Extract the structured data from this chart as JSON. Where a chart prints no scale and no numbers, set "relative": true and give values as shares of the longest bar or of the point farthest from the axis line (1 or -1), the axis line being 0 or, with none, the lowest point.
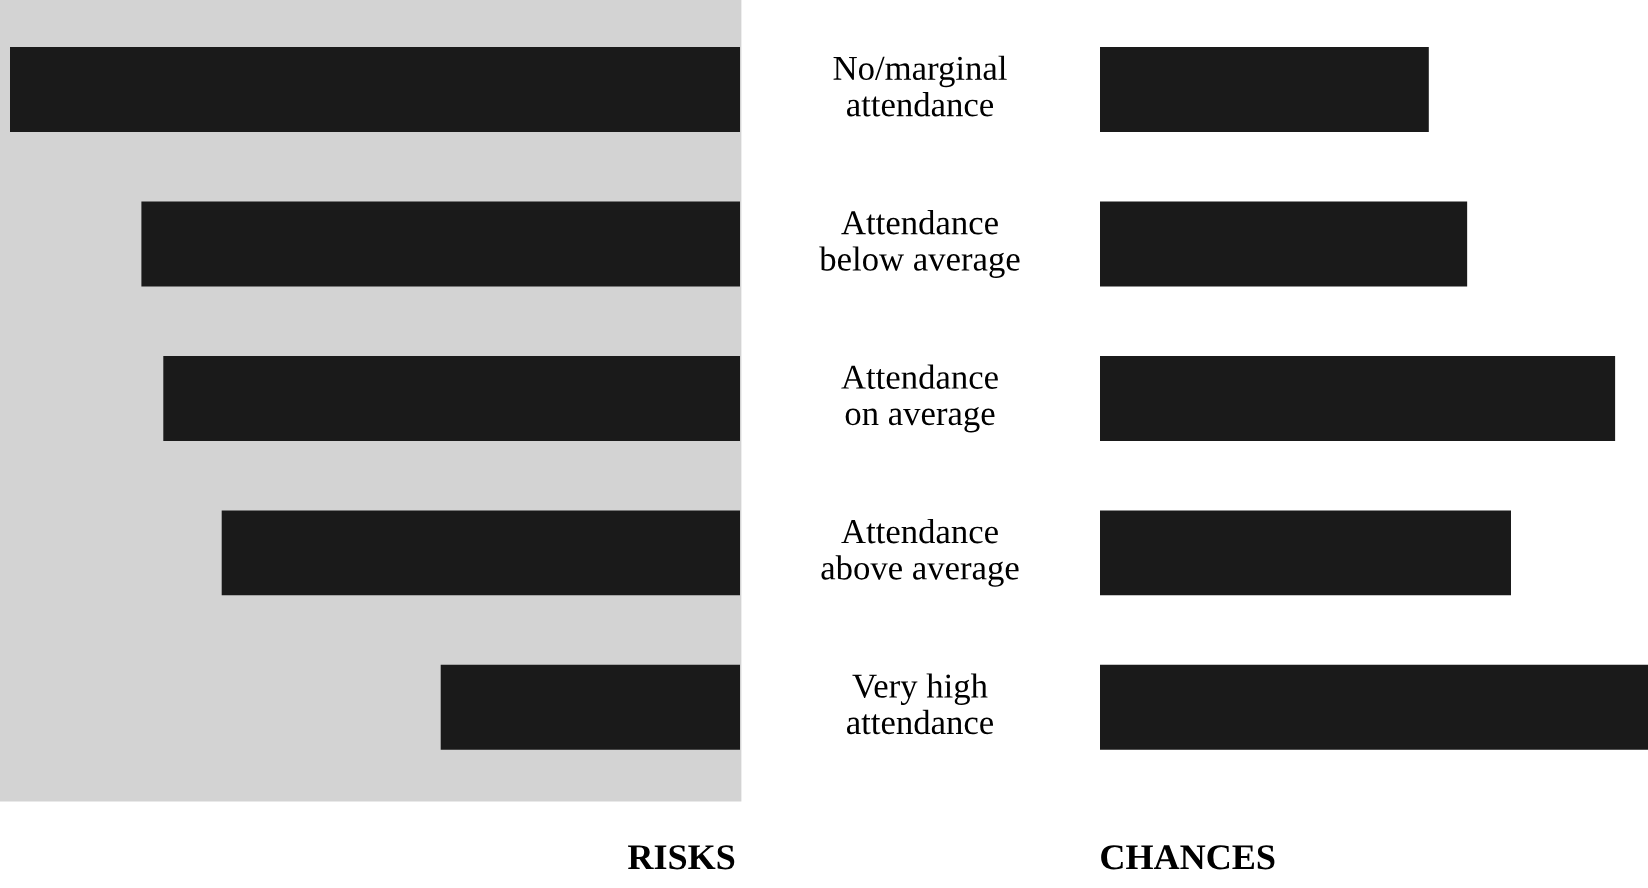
{
  "chart_data": [
    {
      "type": "bar",
      "orientation": "horizontal",
      "relative": true,
      "xlabel": "RISKS",
      "categories": [
        null,
        null,
        null,
        null,
        null
      ],
      "values": [
        1,
        0.82,
        0.79,
        0.71,
        0.41
      ],
      "color": "#1a1a1a"
    },
    {
      "type": "bar",
      "orientation": "horizontal",
      "relative": true,
      "xlabel": "CHANCES",
      "categories": [
        "No/marginal\nattendance",
        "Attendance\nbelow average",
        "Attendance\non average",
        "Attendance\nabove average",
        "Very high\nattendance"
      ],
      "values": [
        0.6,
        0.67,
        0.94,
        0.75,
        1
      ],
      "color": "#1a1a1a"
    }
  ]
}
